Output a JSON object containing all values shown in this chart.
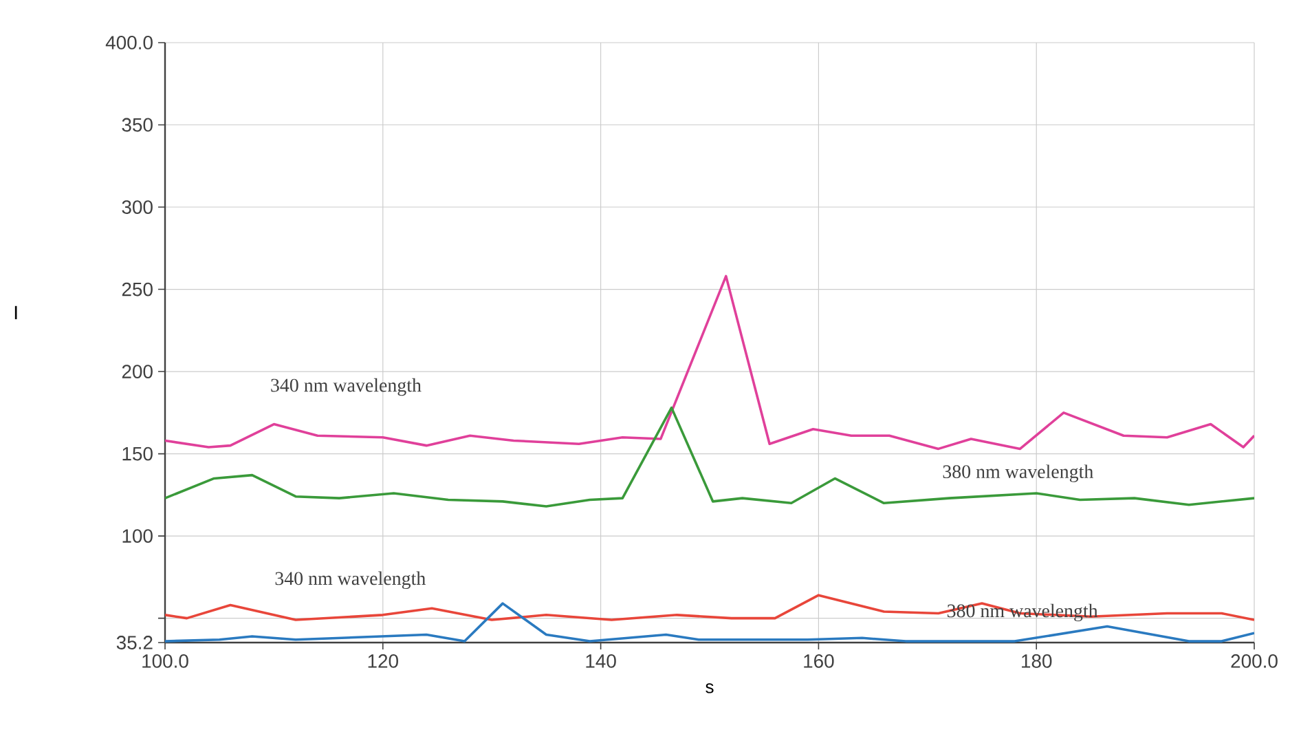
{
  "chart_data": {
    "type": "line",
    "xlabel": "s",
    "ylabel": "I",
    "xlim": [
      100,
      200
    ],
    "xticks": [
      {
        "value": 100,
        "label": "100.0"
      },
      120,
      140,
      160,
      180,
      {
        "value": 200,
        "label": "200.0"
      }
    ],
    "ylim": [
      35.2,
      400
    ],
    "yticks": [
      {
        "value": 35.2,
        "label": "35.2"
      },
      {
        "value": 50,
        "label": null
      },
      100,
      150,
      200,
      250,
      300,
      350,
      {
        "value": 400,
        "label": "400.0"
      }
    ],
    "grid": true,
    "marker": "none",
    "line_style": "solid",
    "series": [
      {
        "color": "#e0409a",
        "x": [
          100,
          104,
          106,
          110,
          114,
          120,
          124,
          128,
          132,
          138,
          142,
          145.5,
          151.5,
          155.5,
          159.5,
          163,
          166.5,
          171,
          174,
          178.5,
          182.5,
          188,
          192,
          196,
          199,
          200
        ],
        "values": [
          158,
          154,
          155,
          168,
          161,
          160,
          155,
          161,
          158,
          156,
          160,
          159,
          258,
          156,
          165,
          161,
          161,
          153,
          159,
          153,
          175,
          161,
          160,
          168,
          154,
          161
        ]
      },
      {
        "color": "#3a9a3a",
        "x": [
          100,
          104.5,
          108,
          112,
          116,
          121,
          126,
          131,
          135,
          139,
          142,
          146.5,
          150.3,
          153,
          157.5,
          161.5,
          166,
          172,
          180,
          184,
          189,
          194,
          200
        ],
        "values": [
          123,
          135,
          137,
          124,
          123,
          126,
          122,
          121,
          118,
          122,
          123,
          178,
          121,
          123,
          120,
          135,
          120,
          123,
          126,
          122,
          123,
          119,
          123
        ]
      },
      {
        "color": "#e8463a",
        "x": [
          100,
          102,
          106,
          112,
          120,
          124.5,
          130,
          135,
          141,
          147,
          152,
          156,
          160,
          166,
          171,
          175,
          178.5,
          185,
          192,
          197,
          200
        ],
        "values": [
          52,
          50,
          58,
          49,
          52,
          56,
          49,
          52,
          49,
          52,
          50,
          50,
          64,
          54,
          53,
          59,
          53,
          51,
          53,
          53,
          49
        ]
      },
      {
        "color": "#2a7ac0",
        "x": [
          100,
          105,
          108,
          112,
          120,
          124,
          127.5,
          131,
          135,
          139,
          146,
          149,
          155,
          159,
          164,
          168,
          172,
          178,
          186.5,
          194,
          197,
          200
        ],
        "values": [
          36,
          37,
          39,
          37,
          39,
          40,
          36,
          59,
          40,
          36,
          40,
          37,
          37,
          37,
          38,
          36,
          36,
          36,
          45,
          36,
          36,
          41
        ]
      }
    ],
    "annotations": [
      "340 nm wavelength",
      "340 nm wavelength",
      "380 nm wavelength",
      "380 nm wavelength"
    ]
  }
}
